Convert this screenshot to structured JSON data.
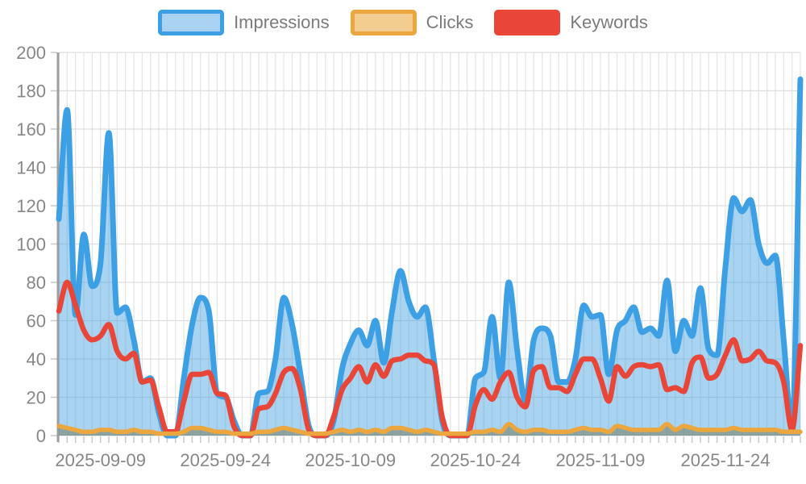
{
  "legend": {
    "items": [
      {
        "label": "Impressions",
        "border_color": "#3d9fe4",
        "fill_color": "#a9d3f1"
      },
      {
        "label": "Clicks",
        "border_color": "#eba63e",
        "fill_color": "#f3cd90"
      },
      {
        "label": "Keywords",
        "border_color": "#e74638",
        "fill_color": "#e74638"
      }
    ]
  },
  "chart_data": {
    "type": "area",
    "title": "",
    "xlabel": "",
    "ylabel": "",
    "grid": true,
    "legend_position": "top",
    "ylim": [
      0,
      200
    ],
    "y_ticks": [
      0,
      20,
      40,
      60,
      80,
      100,
      120,
      140,
      160,
      180,
      200
    ],
    "y_tick_labels": [
      "0",
      "20",
      "40",
      "60",
      "80",
      "100",
      "120",
      "140",
      "160",
      "180",
      "200"
    ],
    "n_points": 90,
    "x_tick_indices": [
      5,
      20,
      35,
      50,
      65,
      80
    ],
    "x_tick_labels": [
      "2025-09-09",
      "2025-09-24",
      "2025-10-09",
      "2025-10-24",
      "2025-11-09",
      "2025-11-24"
    ],
    "series": [
      {
        "name": "Impressions",
        "line_color": "#3d9fe4",
        "fill_color": "rgba(61,158,224,0.45)",
        "line_width": 7,
        "values": [
          113,
          170,
          63,
          105,
          78,
          90,
          158,
          64,
          67,
          50,
          28,
          30,
          12,
          0,
          0,
          30,
          58,
          72,
          65,
          22,
          20,
          8,
          0,
          0,
          22,
          23,
          40,
          72,
          58,
          32,
          5,
          0,
          0,
          8,
          35,
          48,
          55,
          47,
          60,
          38,
          65,
          86,
          70,
          62,
          67,
          40,
          8,
          0,
          0,
          0,
          30,
          33,
          62,
          30,
          80,
          45,
          18,
          50,
          56,
          52,
          28,
          28,
          40,
          68,
          62,
          63,
          32,
          55,
          60,
          67,
          54,
          56,
          52,
          81,
          44,
          60,
          52,
          77,
          45,
          42,
          88,
          124,
          117,
          123,
          100,
          90,
          94,
          50,
          3,
          186
        ]
      },
      {
        "name": "Clicks",
        "line_color": "#eba63e",
        "fill_color": "rgba(115,125,95,0.55)",
        "line_width": 5.5,
        "values": [
          5,
          4,
          3,
          2,
          2,
          3,
          3,
          2,
          2,
          3,
          2,
          2,
          1,
          1,
          1,
          2,
          4,
          4,
          3,
          2,
          2,
          1,
          1,
          1,
          2,
          2,
          3,
          4,
          3,
          2,
          1,
          1,
          1,
          2,
          3,
          2,
          3,
          2,
          3,
          2,
          4,
          4,
          3,
          2,
          3,
          2,
          1,
          1,
          1,
          1,
          2,
          2,
          3,
          2,
          6,
          3,
          2,
          3,
          3,
          2,
          2,
          2,
          3,
          4,
          3,
          3,
          2,
          5,
          4,
          3,
          3,
          3,
          3,
          6,
          3,
          5,
          4,
          3,
          3,
          3,
          3,
          4,
          3,
          3,
          3,
          3,
          3,
          2,
          2,
          2
        ]
      },
      {
        "name": "Keywords",
        "line_color": "#e74638",
        "fill_color": "none",
        "line_width": 6.5,
        "values": [
          65,
          80,
          68,
          55,
          50,
          52,
          58,
          44,
          40,
          43,
          28,
          29,
          15,
          2,
          2,
          18,
          32,
          32,
          33,
          22,
          21,
          5,
          0,
          0,
          14,
          15,
          22,
          33,
          35,
          24,
          3,
          0,
          0,
          10,
          24,
          30,
          36,
          28,
          37,
          31,
          39,
          40,
          42,
          42,
          39,
          37,
          10,
          0,
          0,
          0,
          16,
          24,
          19,
          28,
          33,
          20,
          15,
          34,
          36,
          25,
          25,
          23,
          32,
          40,
          40,
          30,
          18,
          36,
          31,
          36,
          37,
          36,
          37,
          24,
          25,
          23,
          38,
          41,
          30,
          32,
          42,
          50,
          39,
          40,
          44,
          39,
          38,
          28,
          3,
          47
        ]
      }
    ]
  },
  "axis_style": {
    "text_color": "#878787",
    "font_size": 22,
    "hgrid_color": "#dddddd",
    "vgrid_color": "#e5e5e5",
    "axis_line_color": "#9e9e9e",
    "tick_color": "#c9c9c9"
  }
}
